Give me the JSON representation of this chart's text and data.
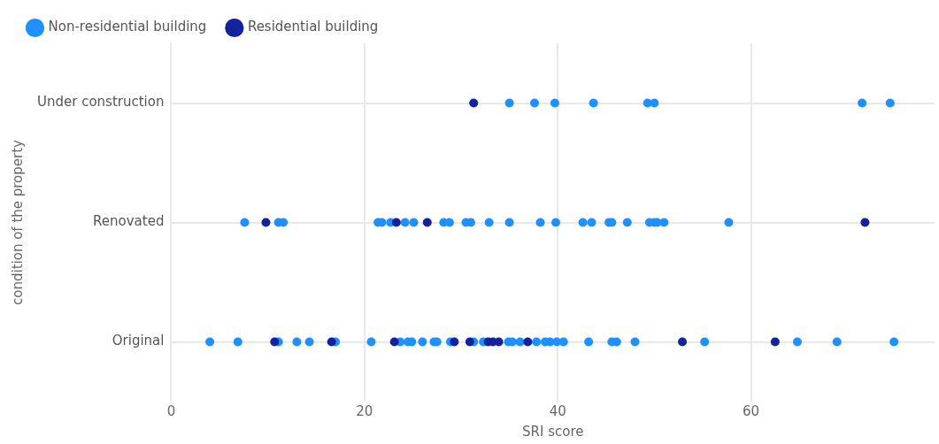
{
  "chart_data": {
    "type": "scatter",
    "orientation": "horizontal",
    "xlabel": "SRI score",
    "ylabel": "condition of the property",
    "categories": [
      "Under construction",
      "Renovated",
      "Original"
    ],
    "xlim": [
      0,
      79
    ],
    "xticks": [
      0,
      20,
      40,
      60
    ],
    "grid": true,
    "legend": "top left",
    "marker": "circle",
    "series": [
      {
        "name": "Non-residential building",
        "color": "#1e90ff",
        "values": [
          35.0,
          37.6,
          39.7,
          43.7,
          49.3,
          50.0,
          71.5,
          74.4,
          7.6,
          11.1,
          11.6,
          21.4,
          21.8,
          22.7,
          24.2,
          25.1,
          28.2,
          28.8,
          30.5,
          31.0,
          32.9,
          35.0,
          38.2,
          39.8,
          42.6,
          43.5,
          45.3,
          45.6,
          47.2,
          49.5,
          50.0,
          50.3,
          51.0,
          57.7,
          4.0,
          6.9,
          11.1,
          13.0,
          14.3,
          17.0,
          20.7,
          23.7,
          24.5,
          24.9,
          26.0,
          27.2,
          27.5,
          28.9,
          31.3,
          32.3,
          34.9,
          35.3,
          36.1,
          37.8,
          38.7,
          39.2,
          39.9,
          40.6,
          43.2,
          45.6,
          46.1,
          48.0,
          55.2,
          64.8,
          68.9,
          74.8
        ],
        "x": [
          "Under construction",
          "Under construction",
          "Under construction",
          "Under construction",
          "Under construction",
          "Under construction",
          "Under construction",
          "Under construction",
          "Renovated",
          "Renovated",
          "Renovated",
          "Renovated",
          "Renovated",
          "Renovated",
          "Renovated",
          "Renovated",
          "Renovated",
          "Renovated",
          "Renovated",
          "Renovated",
          "Renovated",
          "Renovated",
          "Renovated",
          "Renovated",
          "Renovated",
          "Renovated",
          "Renovated",
          "Renovated",
          "Renovated",
          "Renovated",
          "Renovated",
          "Renovated",
          "Renovated",
          "Renovated",
          "Original",
          "Original",
          "Original",
          "Original",
          "Original",
          "Original",
          "Original",
          "Original",
          "Original",
          "Original",
          "Original",
          "Original",
          "Original",
          "Original",
          "Original",
          "Original",
          "Original",
          "Original",
          "Original",
          "Original",
          "Original",
          "Original",
          "Original",
          "Original",
          "Original",
          "Original",
          "Original",
          "Original",
          "Original",
          "Original",
          "Original",
          "Original"
        ]
      },
      {
        "name": "Residential building",
        "color": "#13239e",
        "values": [
          31.3,
          9.8,
          23.3,
          26.5,
          71.8,
          10.7,
          16.6,
          23.1,
          29.3,
          30.9,
          32.8,
          33.3,
          33.9,
          36.9,
          52.9,
          62.5
        ],
        "x": [
          "Under construction",
          "Renovated",
          "Renovated",
          "Renovated",
          "Renovated",
          "Original",
          "Original",
          "Original",
          "Original",
          "Original",
          "Original",
          "Original",
          "Original",
          "Original",
          "Original",
          "Original"
        ]
      }
    ]
  }
}
